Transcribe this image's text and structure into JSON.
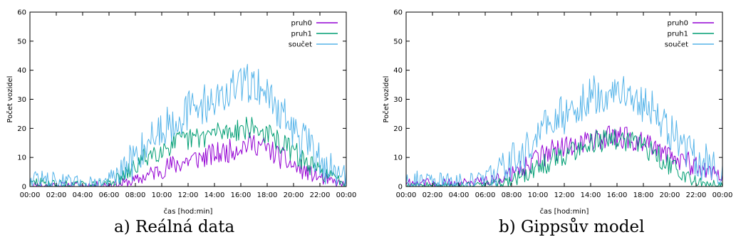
{
  "chart_data": [
    {
      "type": "line",
      "caption": "a) Reálná data",
      "xlabel": "čas [hod:min]",
      "ylabel": "Počet vozidel",
      "ylim": [
        0,
        60
      ],
      "yticks": [
        0,
        10,
        20,
        30,
        40,
        50,
        60
      ],
      "xlim_minutes": [
        0,
        1440
      ],
      "xtick_labels": [
        "00:00",
        "02:00",
        "04:00",
        "06:00",
        "08:00",
        "10:00",
        "12:00",
        "14:00",
        "16:00",
        "18:00",
        "20:00",
        "22:00",
        "00:00"
      ],
      "legend_position": "top-right",
      "grid": false,
      "sampling_interval": "00:05",
      "series": [
        {
          "name": "pruh0",
          "color": "#9400d3",
          "noise_amplitude": 4,
          "envelope": [
            [
              0,
              0.3
            ],
            [
              30,
              0.4
            ],
            [
              60,
              0.3
            ],
            [
              120,
              0.3
            ],
            [
              180,
              0.3
            ],
            [
              240,
              0.3
            ],
            [
              300,
              0.3
            ],
            [
              360,
              0.5
            ],
            [
              420,
              1
            ],
            [
              480,
              2
            ],
            [
              540,
              4
            ],
            [
              600,
              6
            ],
            [
              660,
              7.5
            ],
            [
              720,
              9
            ],
            [
              780,
              10
            ],
            [
              840,
              11
            ],
            [
              900,
              12
            ],
            [
              960,
              14
            ],
            [
              1020,
              15
            ],
            [
              1080,
              13
            ],
            [
              1140,
              10
            ],
            [
              1200,
              7
            ],
            [
              1260,
              5
            ],
            [
              1320,
              3
            ],
            [
              1380,
              1.5
            ],
            [
              1440,
              0.5
            ]
          ]
        },
        {
          "name": "pruh1",
          "color": "#009e73",
          "noise_amplitude": 4,
          "envelope": [
            [
              0,
              0.8
            ],
            [
              30,
              1.4
            ],
            [
              60,
              1.2
            ],
            [
              120,
              0.8
            ],
            [
              180,
              0.5
            ],
            [
              240,
              0.4
            ],
            [
              300,
              0.4
            ],
            [
              360,
              1.5
            ],
            [
              420,
              3
            ],
            [
              480,
              7
            ],
            [
              540,
              11
            ],
            [
              600,
              13
            ],
            [
              660,
              15
            ],
            [
              720,
              16
            ],
            [
              780,
              17
            ],
            [
              840,
              18.5
            ],
            [
              900,
              19
            ],
            [
              960,
              20
            ],
            [
              1020,
              20
            ],
            [
              1080,
              18
            ],
            [
              1140,
              15
            ],
            [
              1200,
              12
            ],
            [
              1260,
              8
            ],
            [
              1320,
              5
            ],
            [
              1380,
              3
            ],
            [
              1440,
              1.5
            ]
          ]
        },
        {
          "name": "součet",
          "color": "#56b4e9",
          "noise_amplitude": 7,
          "envelope": [
            [
              0,
              2.5
            ],
            [
              30,
              3
            ],
            [
              60,
              2
            ],
            [
              120,
              1.5
            ],
            [
              180,
              1
            ],
            [
              240,
              0.8
            ],
            [
              300,
              0.8
            ],
            [
              360,
              2
            ],
            [
              420,
              4.5
            ],
            [
              480,
              10
            ],
            [
              540,
              16
            ],
            [
              600,
              20
            ],
            [
              660,
              23
            ],
            [
              720,
              26
            ],
            [
              780,
              28
            ],
            [
              840,
              30
            ],
            [
              900,
              32
            ],
            [
              960,
              35
            ],
            [
              1020,
              36
            ],
            [
              1080,
              32
            ],
            [
              1140,
              26
            ],
            [
              1200,
              19
            ],
            [
              1260,
              14
            ],
            [
              1320,
              9
            ],
            [
              1380,
              5
            ],
            [
              1440,
              3
            ]
          ]
        }
      ]
    },
    {
      "type": "line",
      "caption": "b) Gippsův model",
      "xlabel": "čas [hod:min]",
      "ylabel": "Počet vozidel",
      "ylim": [
        0,
        60
      ],
      "yticks": [
        0,
        10,
        20,
        30,
        40,
        50,
        60
      ],
      "xlim_minutes": [
        0,
        1440
      ],
      "xtick_labels": [
        "00:00",
        "02:00",
        "04:00",
        "06:00",
        "08:00",
        "10:00",
        "12:00",
        "14:00",
        "16:00",
        "18:00",
        "20:00",
        "22:00",
        "00:00"
      ],
      "legend_position": "top-right",
      "grid": false,
      "sampling_interval": "00:05",
      "series": [
        {
          "name": "pruh0",
          "color": "#9400d3",
          "noise_amplitude": 4,
          "envelope": [
            [
              0,
              1.5
            ],
            [
              60,
              1.2
            ],
            [
              120,
              1
            ],
            [
              180,
              1
            ],
            [
              240,
              1
            ],
            [
              300,
              1
            ],
            [
              360,
              2
            ],
            [
              420,
              3
            ],
            [
              480,
              4.5
            ],
            [
              540,
              7
            ],
            [
              600,
              10
            ],
            [
              660,
              12
            ],
            [
              720,
              13.5
            ],
            [
              780,
              15
            ],
            [
              840,
              16
            ],
            [
              900,
              17
            ],
            [
              960,
              17
            ],
            [
              1020,
              16.5
            ],
            [
              1080,
              15
            ],
            [
              1140,
              13
            ],
            [
              1200,
              11
            ],
            [
              1260,
              9
            ],
            [
              1320,
              7
            ],
            [
              1380,
              5
            ],
            [
              1440,
              3
            ]
          ]
        },
        {
          "name": "pruh1",
          "color": "#009e73",
          "noise_amplitude": 4,
          "envelope": [
            [
              0,
              0.2
            ],
            [
              60,
              0.2
            ],
            [
              120,
              0.2
            ],
            [
              180,
              0.2
            ],
            [
              240,
              0.2
            ],
            [
              300,
              0.3
            ],
            [
              360,
              0.5
            ],
            [
              420,
              1
            ],
            [
              480,
              2
            ],
            [
              540,
              4
            ],
            [
              600,
              6
            ],
            [
              660,
              9
            ],
            [
              720,
              11
            ],
            [
              780,
              13
            ],
            [
              840,
              15
            ],
            [
              900,
              16
            ],
            [
              960,
              16
            ],
            [
              1020,
              15.5
            ],
            [
              1080,
              14
            ],
            [
              1140,
              11
            ],
            [
              1200,
              7
            ],
            [
              1260,
              4
            ],
            [
              1320,
              2
            ],
            [
              1380,
              0.8
            ],
            [
              1440,
              0.3
            ]
          ]
        },
        {
          "name": "součet",
          "color": "#56b4e9",
          "noise_amplitude": 7,
          "envelope": [
            [
              0,
              2.5
            ],
            [
              60,
              2
            ],
            [
              120,
              1.5
            ],
            [
              180,
              1.5
            ],
            [
              240,
              1.5
            ],
            [
              300,
              1.5
            ],
            [
              360,
              3
            ],
            [
              420,
              5
            ],
            [
              480,
              8
            ],
            [
              540,
              12
            ],
            [
              600,
              18
            ],
            [
              660,
              22
            ],
            [
              720,
              25
            ],
            [
              780,
              28
            ],
            [
              840,
              31
            ],
            [
              900,
              32
            ],
            [
              960,
              33
            ],
            [
              1020,
              32
            ],
            [
              1080,
              29
            ],
            [
              1140,
              25
            ],
            [
              1200,
              19
            ],
            [
              1260,
              14
            ],
            [
              1320,
              10
            ],
            [
              1380,
              7
            ],
            [
              1440,
              4
            ]
          ]
        }
      ]
    }
  ]
}
